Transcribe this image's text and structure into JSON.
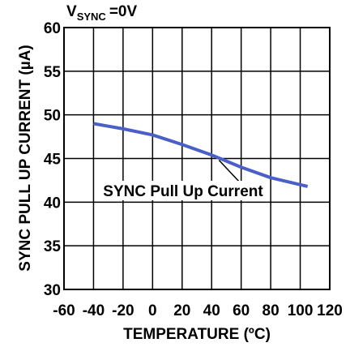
{
  "chart_data": {
    "type": "line",
    "title": "V",
    "title_subscript": "SYNC",
    "title_suffix": "=0V",
    "x_label": "TEMPERATURE (ºC)",
    "y_label": "SYNC PULL UP CURRENT (µA)",
    "x": [
      -40,
      -20,
      0,
      20,
      40,
      60,
      80,
      100,
      105
    ],
    "series": [
      {
        "name": "SYNC Pull Up Current",
        "color": "#4a5fc8",
        "values": [
          49.0,
          48.4,
          47.7,
          46.6,
          45.4,
          44.0,
          42.8,
          42.0,
          41.8
        ]
      }
    ],
    "xlim": [
      -60,
      120
    ],
    "xticks": [
      -60,
      -40,
      -20,
      0,
      20,
      40,
      60,
      80,
      100,
      120
    ],
    "ylim": [
      30,
      60
    ],
    "yticks": [
      30,
      35,
      40,
      45,
      50,
      55,
      60
    ],
    "grid": true
  }
}
